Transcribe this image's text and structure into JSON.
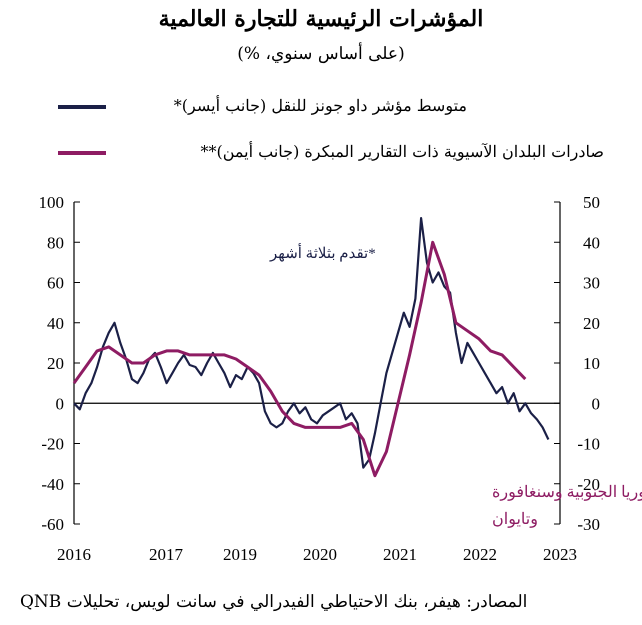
{
  "title": "المؤشرات الرئيسية للتجارة العالمية",
  "subtitle": "(على أساس سنوي، %)",
  "source": "المصادر: هيفر، بنك الاحتياطي الفيدرالي في سانت لويس، تحليلات QNB",
  "colors": {
    "navy": "#1b2047",
    "maroon": "#8e1c63"
  },
  "chart_data": {
    "type": "line",
    "x_range": [
      "2016-01",
      "2023-01"
    ],
    "x_ticks": [
      "2016",
      "2017",
      "2019",
      "2020",
      "2021",
      "2022",
      "2023"
    ],
    "y_left": {
      "ylim": [
        -60,
        100
      ],
      "ticks": [
        "100",
        "80",
        "60",
        "40",
        "20",
        "0",
        "-20",
        "-40",
        "-60"
      ]
    },
    "y_right": {
      "ylim": [
        -30,
        50
      ],
      "ticks": [
        "50",
        "40",
        "30",
        "20",
        "10",
        "0",
        "-10",
        "-20",
        "-30"
      ]
    },
    "annotations": {
      "left_note": "*تقدم بثلاثة أشهر",
      "bottom_note_line1": "**متوسط ثلاثة أشهر لليابان وكوريا الجنوبية وسنغافورة",
      "bottom_note_line2": "وتايوان"
    },
    "series": [
      {
        "name": "متوسط مؤشر داو جونز للنقل (جانب أيسر)*",
        "axis": "left",
        "color": "#1b2047",
        "x": [
          "2016-01",
          "2016-02",
          "2016-03",
          "2016-04",
          "2016-05",
          "2016-06",
          "2016-07",
          "2016-08",
          "2016-09",
          "2016-10",
          "2016-11",
          "2016-12",
          "2017-01",
          "2017-02",
          "2017-03",
          "2017-04",
          "2017-05",
          "2017-06",
          "2017-07",
          "2017-08",
          "2017-09",
          "2017-10",
          "2017-11",
          "2017-12",
          "2018-01",
          "2018-02",
          "2018-03",
          "2018-04",
          "2018-05",
          "2018-06",
          "2018-07",
          "2018-08",
          "2018-09",
          "2018-10",
          "2018-11",
          "2018-12",
          "2019-01",
          "2019-02",
          "2019-03",
          "2019-04",
          "2019-05",
          "2019-06",
          "2019-07",
          "2019-08",
          "2019-09",
          "2019-10",
          "2019-11",
          "2019-12",
          "2020-01",
          "2020-02",
          "2020-03",
          "2020-04",
          "2020-05",
          "2020-06",
          "2020-07",
          "2020-08",
          "2020-09",
          "2020-10",
          "2020-11",
          "2020-12",
          "2021-01",
          "2021-02",
          "2021-03",
          "2021-04",
          "2021-05",
          "2021-06",
          "2021-07",
          "2021-08",
          "2021-09",
          "2021-10",
          "2021-11",
          "2021-12",
          "2022-01",
          "2022-02",
          "2022-03",
          "2022-04",
          "2022-05",
          "2022-06",
          "2022-07",
          "2022-08",
          "2022-09",
          "2022-10",
          "2022-11"
        ],
        "values": [
          0,
          -3,
          5,
          10,
          18,
          28,
          35,
          40,
          30,
          22,
          12,
          10,
          15,
          22,
          25,
          18,
          10,
          15,
          20,
          24,
          19,
          18,
          14,
          20,
          25,
          20,
          15,
          8,
          14,
          12,
          18,
          15,
          10,
          -4,
          -10,
          -12,
          -10,
          -4,
          0,
          -5,
          -2,
          -8,
          -10,
          -6,
          -4,
          -2,
          0,
          -8,
          -5,
          -10,
          -32,
          -28,
          -15,
          0,
          15,
          25,
          35,
          45,
          38,
          52,
          92,
          70,
          60,
          65,
          58,
          55,
          35,
          20,
          30,
          25,
          20,
          15,
          10,
          5,
          8,
          0,
          5,
          -4,
          0,
          -5,
          -8,
          -12,
          -18
        ]
      },
      {
        "name": "صادرات البلدان الآسيوية ذات التقارير المبكرة (جانب أيمن)**",
        "axis": "right",
        "color": "#8e1c63",
        "x": [
          "2016-01",
          "2016-03",
          "2016-05",
          "2016-07",
          "2016-09",
          "2016-11",
          "2017-01",
          "2017-03",
          "2017-05",
          "2017-07",
          "2017-09",
          "2017-11",
          "2018-01",
          "2018-03",
          "2018-05",
          "2018-07",
          "2018-09",
          "2018-11",
          "2019-01",
          "2019-03",
          "2019-05",
          "2019-07",
          "2019-09",
          "2019-11",
          "2020-01",
          "2020-03",
          "2020-05",
          "2020-07",
          "2020-09",
          "2020-11",
          "2021-01",
          "2021-03",
          "2021-05",
          "2021-07",
          "2021-09",
          "2021-11",
          "2022-01",
          "2022-03",
          "2022-05",
          "2022-07"
        ],
        "values": [
          5,
          9,
          13,
          14,
          12,
          10,
          10,
          12,
          13,
          13,
          12,
          12,
          12,
          12,
          11,
          9,
          7,
          3,
          -2,
          -5,
          -6,
          -6,
          -6,
          -6,
          -5,
          -9,
          -18,
          -12,
          0,
          12,
          25,
          40,
          32,
          20,
          18,
          16,
          13,
          12,
          9,
          6
        ]
      }
    ]
  }
}
